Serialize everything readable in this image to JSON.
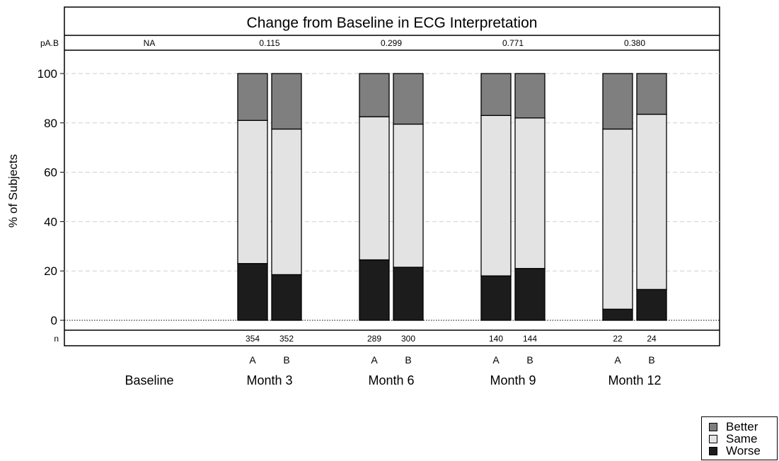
{
  "chart_data": {
    "type": "bar",
    "stacked": true,
    "title": "Change from Baseline in ECG Interpretation",
    "ylabel": "% of Subjects",
    "ylim": [
      0,
      100
    ],
    "yticks": [
      "0",
      "20",
      "40",
      "60",
      "80",
      "100"
    ],
    "grid": true,
    "legend_position": "bottom-right",
    "p_row_label": "pA.B",
    "n_row_label": "n",
    "groups": [
      {
        "label": "Baseline",
        "p": "NA",
        "bars": []
      },
      {
        "label": "Month 3",
        "p": "0.115",
        "bars": [
          {
            "arm": "A",
            "n": "354",
            "worse": 23,
            "same": 58,
            "better": 19
          },
          {
            "arm": "B",
            "n": "352",
            "worse": 18.5,
            "same": 59,
            "better": 22.5
          }
        ]
      },
      {
        "label": "Month 6",
        "p": "0.299",
        "bars": [
          {
            "arm": "A",
            "n": "289",
            "worse": 24.5,
            "same": 58,
            "better": 17.5
          },
          {
            "arm": "B",
            "n": "300",
            "worse": 21.5,
            "same": 58,
            "better": 20.5
          }
        ]
      },
      {
        "label": "Month 9",
        "p": "0.771",
        "bars": [
          {
            "arm": "A",
            "n": "140",
            "worse": 18,
            "same": 65,
            "better": 17
          },
          {
            "arm": "B",
            "n": "144",
            "worse": 21,
            "same": 61,
            "better": 18
          }
        ]
      },
      {
        "label": "Month 12",
        "p": "0.380",
        "bars": [
          {
            "arm": "A",
            "n": "22",
            "worse": 4.5,
            "same": 73,
            "better": 22.5
          },
          {
            "arm": "B",
            "n": "24",
            "worse": 12.5,
            "same": 71,
            "better": 16.5
          }
        ]
      }
    ],
    "series": [
      {
        "key": "better",
        "name": "Better",
        "color": "#7f7f7f"
      },
      {
        "key": "same",
        "name": "Same",
        "color": "#e3e3e3"
      },
      {
        "key": "worse",
        "name": "Worse",
        "color": "#1c1c1c"
      }
    ]
  }
}
